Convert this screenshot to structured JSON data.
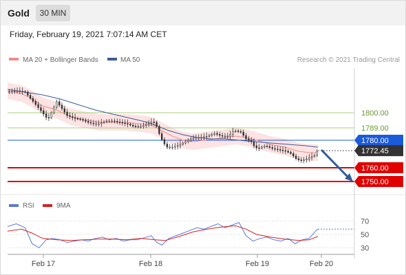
{
  "header": {
    "title": "Gold",
    "timeframe": "30 MIN",
    "datetime": "Friday, February 19, 2021 7:07:14 AM CET"
  },
  "colors": {
    "background": "#ffffff",
    "candle": "#333333",
    "ma20": "#f28b8b",
    "bollinger_fill": "#fde3e3",
    "ma50": "#3b5b96",
    "resistance": "#a4d17a",
    "pivot": "#1a5adb",
    "support": "#e00000",
    "last_price": "#333333",
    "arrow": "#2f5c9b",
    "rsi": "#5a78d8",
    "rsi_ma": "#d42020"
  },
  "chart_data": [
    {
      "type": "candlestick",
      "instrument": "Gold",
      "timeframe": "30 MIN",
      "legend": [
        "MA 20 + Bollinger Bands",
        "MA 50"
      ],
      "credit": "Research © 2021 Trading Central",
      "x_ticks": [
        "Feb 17",
        "Feb 18",
        "Feb 19",
        "Feb 20"
      ],
      "ylim": [
        1742,
        1832
      ],
      "levels": [
        {
          "label": "1800.00",
          "value": 1800.0,
          "kind": "resistance"
        },
        {
          "label": "1789.00",
          "value": 1789.0,
          "kind": "resistance"
        },
        {
          "label": "1780.00",
          "value": 1780.0,
          "kind": "pivot"
        },
        {
          "label": "1772.45",
          "value": 1772.45,
          "kind": "last"
        },
        {
          "label": "1760.00",
          "value": 1760.0,
          "kind": "support"
        },
        {
          "label": "1750.00",
          "value": 1750.0,
          "kind": "support"
        }
      ],
      "price_path": [
        [
          0,
          1815
        ],
        [
          5,
          1816
        ],
        [
          10,
          1815
        ],
        [
          12,
          1812
        ],
        [
          16,
          1806
        ],
        [
          20,
          1800
        ],
        [
          23,
          1795
        ],
        [
          25,
          1800
        ],
        [
          28,
          1808
        ],
        [
          31,
          1803
        ],
        [
          34,
          1798
        ],
        [
          38,
          1796
        ],
        [
          42,
          1795
        ],
        [
          46,
          1793
        ],
        [
          49,
          1792
        ],
        [
          52,
          1792
        ],
        [
          56,
          1794
        ],
        [
          60,
          1794
        ],
        [
          64,
          1793
        ],
        [
          68,
          1792
        ],
        [
          72,
          1790
        ],
        [
          76,
          1790
        ],
        [
          80,
          1792
        ],
        [
          83,
          1794
        ],
        [
          85,
          1790
        ],
        [
          87,
          1783
        ],
        [
          89,
          1778
        ],
        [
          91,
          1775
        ],
        [
          94,
          1775
        ],
        [
          97,
          1776
        ],
        [
          100,
          1778
        ],
        [
          103,
          1780
        ],
        [
          106,
          1782
        ],
        [
          110,
          1782
        ],
        [
          114,
          1783
        ],
        [
          118,
          1785
        ],
        [
          122,
          1783
        ],
        [
          126,
          1783
        ],
        [
          129,
          1787
        ],
        [
          133,
          1786
        ],
        [
          136,
          1781
        ],
        [
          139,
          1779
        ],
        [
          141,
          1775
        ],
        [
          143,
          1774
        ],
        [
          147,
          1776
        ],
        [
          151,
          1774
        ],
        [
          155,
          1773
        ],
        [
          159,
          1772
        ],
        [
          162,
          1770
        ],
        [
          164,
          1767
        ],
        [
          167,
          1765
        ],
        [
          170,
          1766
        ],
        [
          173,
          1768
        ],
        [
          175,
          1769
        ],
        [
          177,
          1773
        ]
      ],
      "ma20": [
        [
          0,
          1816
        ],
        [
          8,
          1814
        ],
        [
          14,
          1810
        ],
        [
          20,
          1805
        ],
        [
          28,
          1802
        ],
        [
          36,
          1797
        ],
        [
          44,
          1795
        ],
        [
          52,
          1793
        ],
        [
          60,
          1793
        ],
        [
          68,
          1793
        ],
        [
          76,
          1792
        ],
        [
          82,
          1791
        ],
        [
          88,
          1787
        ],
        [
          94,
          1783
        ],
        [
          100,
          1780
        ],
        [
          106,
          1779
        ],
        [
          112,
          1780
        ],
        [
          118,
          1781
        ],
        [
          124,
          1782
        ],
        [
          130,
          1783
        ],
        [
          136,
          1782
        ],
        [
          142,
          1780
        ],
        [
          150,
          1777
        ],
        [
          158,
          1775
        ],
        [
          166,
          1772
        ],
        [
          172,
          1771
        ],
        [
          177,
          1771
        ]
      ],
      "ma50": [
        [
          0,
          1817
        ],
        [
          10,
          1815
        ],
        [
          20,
          1813
        ],
        [
          30,
          1810
        ],
        [
          40,
          1806
        ],
        [
          50,
          1802
        ],
        [
          60,
          1799
        ],
        [
          70,
          1796
        ],
        [
          80,
          1793
        ],
        [
          86,
          1790
        ],
        [
          92,
          1787
        ],
        [
          100,
          1784
        ],
        [
          108,
          1782
        ],
        [
          116,
          1781
        ],
        [
          124,
          1781
        ],
        [
          132,
          1780
        ],
        [
          140,
          1779
        ],
        [
          150,
          1778
        ],
        [
          160,
          1777
        ],
        [
          170,
          1776
        ],
        [
          177,
          1775
        ]
      ],
      "bollinger_width": 6,
      "forecast_arrow": [
        [
          1773,
          1750
        ]
      ]
    },
    {
      "type": "line",
      "legend": [
        "RSI",
        "9MA"
      ],
      "y_ticks": [
        70,
        50,
        30
      ],
      "ylim": [
        18,
        82
      ],
      "series": [
        {
          "name": "RSI",
          "values": [
            [
              0,
              62
            ],
            [
              5,
              66
            ],
            [
              10,
              60
            ],
            [
              14,
              36
            ],
            [
              18,
              30
            ],
            [
              22,
              42
            ],
            [
              26,
              44
            ],
            [
              30,
              42
            ],
            [
              34,
              38
            ],
            [
              38,
              40
            ],
            [
              42,
              42
            ],
            [
              46,
              40
            ],
            [
              50,
              44
            ],
            [
              54,
              46
            ],
            [
              58,
              42
            ],
            [
              62,
              44
            ],
            [
              66,
              40
            ],
            [
              70,
              42
            ],
            [
              74,
              42
            ],
            [
              78,
              45
            ],
            [
              82,
              48
            ],
            [
              85,
              38
            ],
            [
              88,
              34
            ],
            [
              92,
              44
            ],
            [
              96,
              48
            ],
            [
              100,
              52
            ],
            [
              104,
              56
            ],
            [
              108,
              60
            ],
            [
              112,
              58
            ],
            [
              116,
              62
            ],
            [
              120,
              66
            ],
            [
              124,
              60
            ],
            [
              128,
              64
            ],
            [
              132,
              68
            ],
            [
              136,
              48
            ],
            [
              140,
              40
            ],
            [
              144,
              44
            ],
            [
              148,
              46
            ],
            [
              152,
              42
            ],
            [
              156,
              40
            ],
            [
              160,
              44
            ],
            [
              164,
              36
            ],
            [
              168,
              42
            ],
            [
              172,
              44
            ],
            [
              176,
              56
            ],
            [
              177,
              58
            ]
          ]
        },
        {
          "name": "9MA",
          "values": [
            [
              0,
              55
            ],
            [
              8,
              58
            ],
            [
              14,
              52
            ],
            [
              20,
              44
            ],
            [
              28,
              42
            ],
            [
              36,
              41
            ],
            [
              44,
              42
            ],
            [
              52,
              43
            ],
            [
              60,
              43
            ],
            [
              68,
              42
            ],
            [
              76,
              44
            ],
            [
              84,
              42
            ],
            [
              90,
              41
            ],
            [
              98,
              47
            ],
            [
              106,
              54
            ],
            [
              114,
              58
            ],
            [
              122,
              61
            ],
            [
              130,
              63
            ],
            [
              136,
              58
            ],
            [
              142,
              50
            ],
            [
              150,
              46
            ],
            [
              158,
              43
            ],
            [
              166,
              41
            ],
            [
              172,
              42
            ],
            [
              177,
              47
            ]
          ]
        }
      ]
    }
  ]
}
